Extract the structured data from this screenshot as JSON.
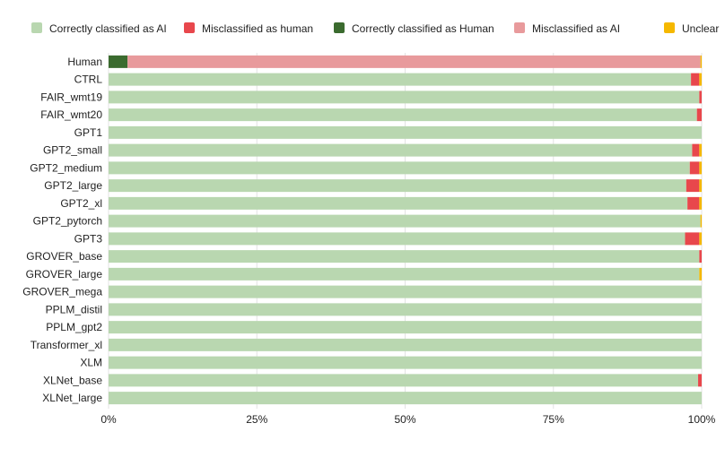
{
  "chart_data": {
    "type": "bar",
    "orientation": "horizontal",
    "stacked": true,
    "percent": true,
    "title": "",
    "xlabel": "",
    "ylabel": "",
    "xlim": [
      0,
      100
    ],
    "x_ticks": [
      0,
      25,
      50,
      75,
      100
    ],
    "x_tick_labels": [
      "0%",
      "25%",
      "50%",
      "75%",
      "100%"
    ],
    "legend_position": "top",
    "categories": [
      "Human",
      "CTRL",
      "FAIR_wmt19",
      "FAIR_wmt20",
      "GPT1",
      "GPT2_small",
      "GPT2_medium",
      "GPT2_large",
      "GPT2_xl",
      "GPT2_pytorch",
      "GPT3",
      "GROVER_base",
      "GROVER_large",
      "GROVER_mega",
      "PPLM_distil",
      "PPLM_gpt2",
      "Transformer_xl",
      "XLM",
      "XLNet_base",
      "XLNet_large"
    ],
    "series": [
      {
        "name": "Correctly classified as AI",
        "color": "#b9d7b0",
        "values": [
          0,
          98.2,
          99.6,
          99.2,
          100,
          98.4,
          98.0,
          97.4,
          97.6,
          99.8,
          97.2,
          99.6,
          99.6,
          100,
          100,
          100,
          100,
          100,
          99.4,
          100
        ]
      },
      {
        "name": "Misclassified as human",
        "color": "#e8474c",
        "values": [
          0,
          1.4,
          0.4,
          0.8,
          0,
          1.2,
          1.6,
          2.2,
          2.0,
          0,
          2.4,
          0.4,
          0,
          0,
          0,
          0,
          0,
          0,
          0.6,
          0
        ]
      },
      {
        "name": "Correctly classified as Human",
        "color": "#3b6b2f",
        "values": [
          3.2,
          0,
          0,
          0,
          0,
          0,
          0,
          0,
          0,
          0,
          0,
          0,
          0,
          0,
          0,
          0,
          0,
          0,
          0,
          0
        ]
      },
      {
        "name": "Misclassified as AI",
        "color": "#e89a9c",
        "values": [
          96.6,
          0,
          0,
          0,
          0,
          0,
          0,
          0,
          0,
          0,
          0,
          0,
          0,
          0,
          0,
          0,
          0,
          0,
          0,
          0
        ]
      },
      {
        "name": "Unclear",
        "color": "#f5b800",
        "values": [
          0.2,
          0.4,
          0,
          0,
          0,
          0.4,
          0.4,
          0.4,
          0.4,
          0.2,
          0.4,
          0,
          0.4,
          0,
          0,
          0,
          0,
          0,
          0,
          0
        ]
      }
    ]
  }
}
